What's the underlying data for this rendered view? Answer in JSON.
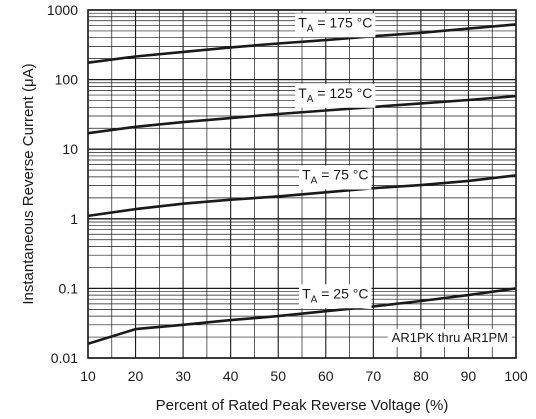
{
  "chart_data": {
    "type": "line",
    "title": "",
    "xlabel": "Percent of Rated Peak Reverse Voltage (%)",
    "ylabel": "Instantaneous Reverse Current (μA)",
    "xlim": [
      10,
      100
    ],
    "ylim": [
      0.01,
      1000
    ],
    "y_scale": "log",
    "grid": true,
    "x_ticks": [
      10,
      20,
      30,
      40,
      50,
      60,
      70,
      80,
      90,
      100
    ],
    "y_ticks": [
      {
        "value": 0.01,
        "label": "0.01"
      },
      {
        "value": 0.1,
        "label": "0.1"
      },
      {
        "value": 1,
        "label": "1"
      },
      {
        "value": 10,
        "label": "10"
      },
      {
        "value": 100,
        "label": "100"
      },
      {
        "value": 1000,
        "label": "1000"
      }
    ],
    "annotation": "AR1PK thru AR1PM",
    "series": [
      {
        "label_prefix": "T",
        "label_sub": "A",
        "label_rest": " = 175 °C",
        "label_at_x": 62,
        "x": [
          10,
          20,
          30,
          40,
          50,
          60,
          70,
          80,
          90,
          100
        ],
        "values": [
          175,
          215,
          250,
          290,
          330,
          370,
          420,
          470,
          540,
          620
        ]
      },
      {
        "label_prefix": "T",
        "label_sub": "A",
        "label_rest": " = 125 °C",
        "label_at_x": 62,
        "x": [
          10,
          20,
          30,
          40,
          50,
          60,
          70,
          80,
          90,
          100
        ],
        "values": [
          17,
          21,
          24.5,
          28,
          32,
          36,
          40.5,
          45.5,
          51,
          58
        ]
      },
      {
        "label_prefix": "T",
        "label_sub": "A",
        "label_rest": " = 75 °C",
        "label_at_x": 62,
        "x": [
          10,
          20,
          30,
          40,
          50,
          60,
          70,
          80,
          90,
          100
        ],
        "values": [
          1.1,
          1.38,
          1.65,
          1.88,
          2.1,
          2.4,
          2.75,
          3.05,
          3.5,
          4.2
        ]
      },
      {
        "label_prefix": "T",
        "label_sub": "A",
        "label_rest": " = 25 °C",
        "label_at_x": 62,
        "x": [
          10,
          20,
          30,
          40,
          50,
          60,
          70,
          80,
          90,
          100
        ],
        "values": [
          0.016,
          0.026,
          0.03,
          0.035,
          0.04,
          0.047,
          0.055,
          0.066,
          0.08,
          0.1
        ]
      }
    ]
  }
}
